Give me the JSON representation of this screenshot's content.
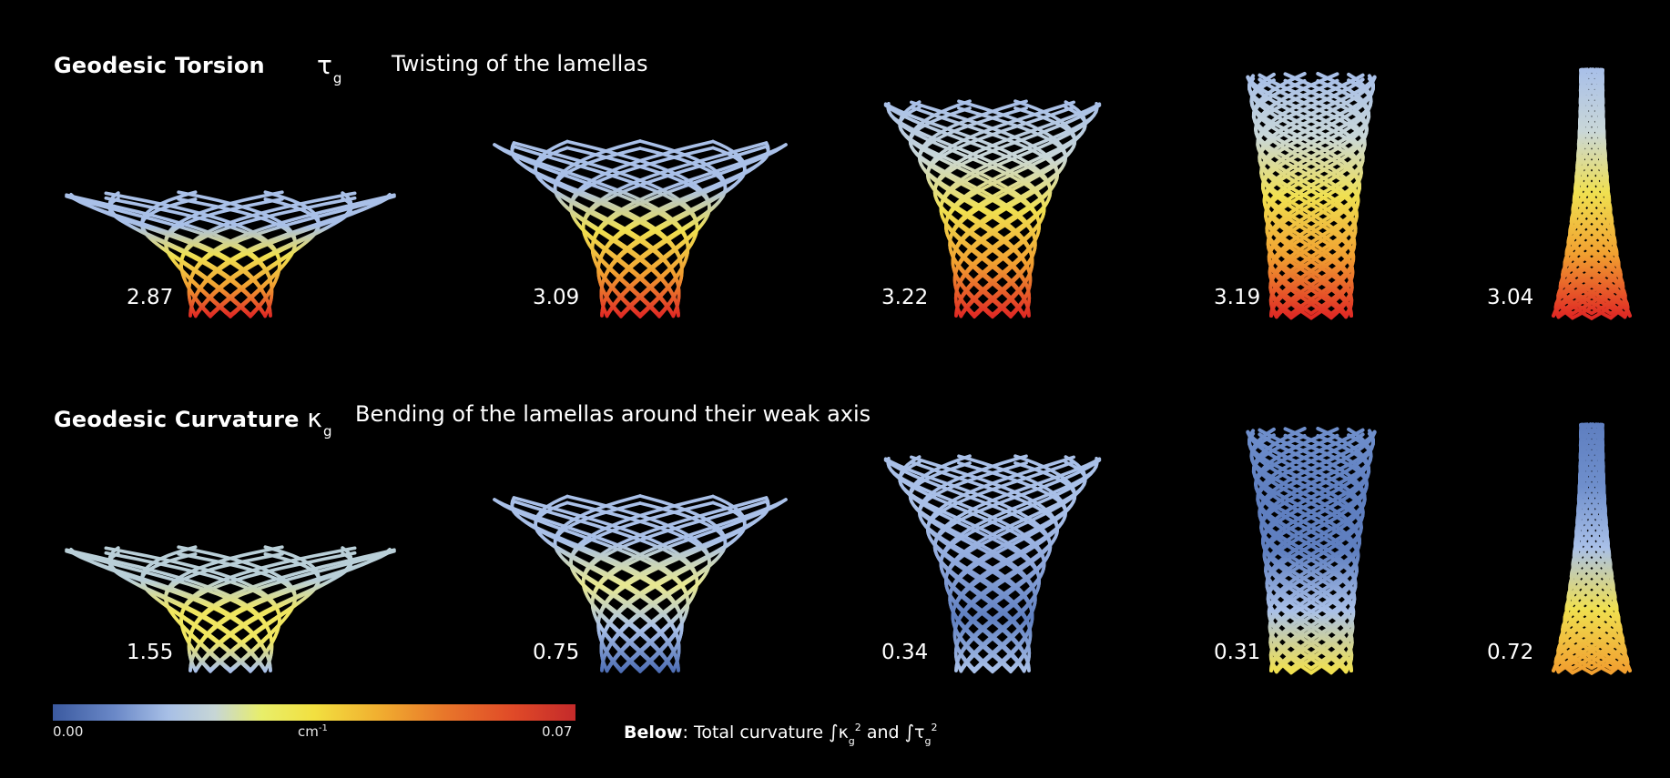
{
  "row1": {
    "title": "Geodesic Torsion",
    "symbol": "τ",
    "symbol_sub": "g",
    "description": "Twisting of the lamellas",
    "values": [
      "2.87",
      "3.09",
      "3.22",
      "3.19",
      "3.04"
    ]
  },
  "row2": {
    "title": "Geodesic Curvature",
    "symbol": "κ",
    "symbol_sub": "g",
    "description": "Bending of the lamellas around their weak axis",
    "values": [
      "1.55",
      "0.75",
      "0.34",
      "0.31",
      "0.72"
    ]
  },
  "colorbar": {
    "min_label": "0.00",
    "unit": "cm",
    "unit_exp": "-1",
    "max_label": "0.07",
    "min_value": 0.0,
    "max_value": 0.07,
    "colors": [
      "#3b5aa0",
      "#a7bfe6",
      "#f2e040",
      "#f1b030",
      "#c42a2a"
    ]
  },
  "footnote": {
    "bold": "Below",
    "text": ": Total curvature",
    "int1_sym": "κ",
    "int1_sub": "g",
    "int1_exp": "2",
    "and": "and",
    "int2_sym": "τ",
    "int2_sub": "g",
    "int2_exp": "2",
    "integral": "∫"
  },
  "shape_colors": {
    "row1": [
      [
        "#a9c0e8",
        "#a9c0e8",
        "#f0e050",
        "#f1a030",
        "#e02a24"
      ],
      [
        "#a9c0e8",
        "#a9c0e8",
        "#f0e050",
        "#f1a030",
        "#e02a24"
      ],
      [
        "#a9c0e8",
        "#c9d7d8",
        "#f0e050",
        "#f1a030",
        "#e02a24"
      ],
      [
        "#a9c0e8",
        "#c9d7d8",
        "#f0e050",
        "#f1a030",
        "#e02a24"
      ],
      [
        "#a9c0e8",
        "#c9d7d8",
        "#f0e050",
        "#f1a030",
        "#e02a24"
      ]
    ],
    "row2": [
      [
        "#b9cfd8",
        "#b9cfd8",
        "#f0e660",
        "#f0e660",
        "#a9c0e8"
      ],
      [
        "#a9c0e8",
        "#a9c0e8",
        "#e8e890",
        "#a9c0e8",
        "#4f6fb5"
      ],
      [
        "#a9c0e8",
        "#a9c0e8",
        "#8fa8dc",
        "#5f7fc0",
        "#a9c0e8"
      ],
      [
        "#6f8fcc",
        "#5f7fc0",
        "#5f7fc0",
        "#a9c0e8",
        "#f0e050"
      ],
      [
        "#5f7fc0",
        "#6f8fcc",
        "#a9c0e8",
        "#f0e050",
        "#f1a030"
      ]
    ]
  }
}
